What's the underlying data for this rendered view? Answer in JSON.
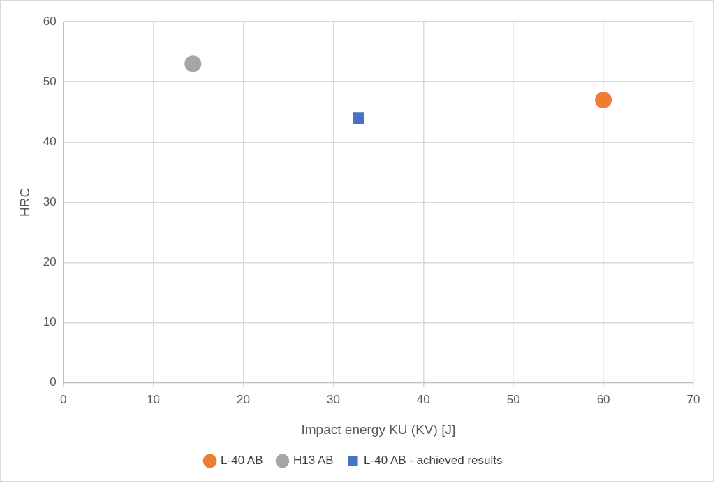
{
  "chart_data": {
    "type": "scatter",
    "xlabel": "Impact energy KU (KV) [J]",
    "ylabel": "HRC",
    "series": [
      {
        "name": "L-40 AB",
        "color": "#ed7d31",
        "marker": "circle",
        "x": [
          60
        ],
        "values": [
          47
        ]
      },
      {
        "name": "H13 AB",
        "color": "#a5a5a5",
        "marker": "circle",
        "x": [
          14.4
        ],
        "values": [
          53
        ]
      },
      {
        "name": "L-40 AB - achieved results",
        "color": "#4472c4",
        "marker": "square",
        "x": [
          32.8
        ],
        "values": [
          44
        ]
      }
    ],
    "xlim": [
      0,
      70
    ],
    "xticks": [
      0,
      10,
      20,
      30,
      40,
      50,
      60,
      70
    ],
    "ylim": [
      0,
      60
    ],
    "yticks": [
      0,
      10,
      20,
      30,
      40,
      50,
      60
    ],
    "grid": true,
    "legend": "bottom"
  }
}
